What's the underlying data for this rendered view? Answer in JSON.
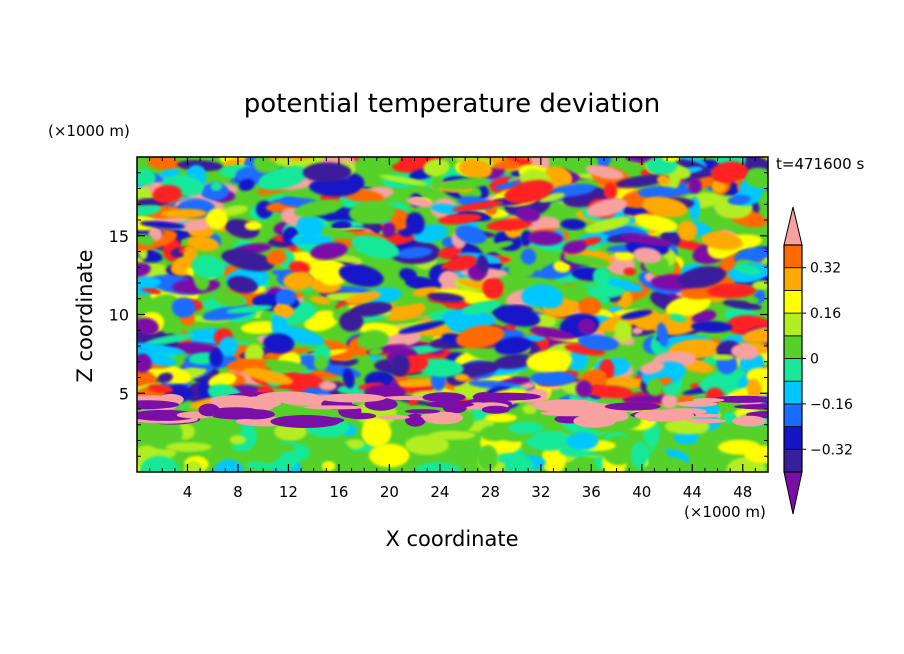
{
  "chart_data": {
    "type": "heatmap",
    "title": "potential temperature deviation",
    "time_label": "t=471600 s",
    "x_axis": {
      "label": "X coordinate",
      "unit_label": "(×1000 m)",
      "range": [
        0,
        50
      ],
      "tick_labels": [
        "4",
        "8",
        "12",
        "16",
        "20",
        "24",
        "28",
        "32",
        "36",
        "40",
        "44",
        "48"
      ]
    },
    "y_axis": {
      "label": "Z coordinate",
      "unit_label": "(×1000 m)",
      "range": [
        0,
        20
      ],
      "tick_labels": [
        "5",
        "10",
        "15"
      ]
    },
    "colorbar": {
      "levels": [
        -0.4,
        -0.32,
        -0.24,
        -0.16,
        -0.08,
        0,
        0.08,
        0.16,
        0.24,
        0.32,
        0.4
      ],
      "colors": [
        "#7a0fa8",
        "#3a1f9a",
        "#1515c8",
        "#1a6cff",
        "#00c8ff",
        "#19e89a",
        "#55d12a",
        "#b2ee20",
        "#ffff00",
        "#ffaa00",
        "#ff6a00",
        "#ff2020",
        "#f7a2a0"
      ],
      "tick_labels": [
        "0.32",
        "0.16",
        "0",
        "−0.16",
        "−0.32"
      ],
      "tick_values": [
        0.32,
        0.16,
        0,
        -0.16,
        -0.32
      ]
    }
  }
}
